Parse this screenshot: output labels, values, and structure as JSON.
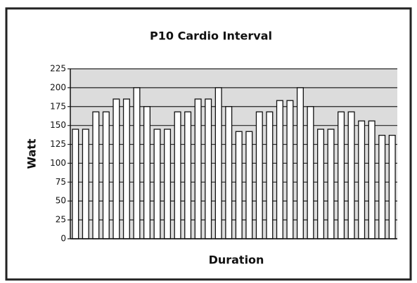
{
  "chart_data": {
    "type": "bar",
    "title": "P10 Cardio Interval",
    "x_label": "Duration",
    "y_label": "Watt",
    "categories": [
      null,
      null,
      null,
      null,
      null,
      null,
      null,
      null,
      null,
      null,
      null,
      null,
      null,
      null,
      null,
      null,
      null,
      null,
      null,
      null,
      null,
      null,
      null,
      null,
      null,
      null,
      null,
      null,
      null,
      null,
      null,
      null
    ],
    "values": [
      145,
      145,
      168,
      168,
      185,
      185,
      200,
      175,
      145,
      145,
      168,
      168,
      185,
      185,
      200,
      175,
      142,
      142,
      168,
      168,
      183,
      183,
      200,
      175,
      145,
      145,
      168,
      168,
      156,
      156,
      137,
      137
    ],
    "color": "#ffffff",
    "ylim": [
      0,
      225
    ],
    "yticks": [
      0,
      25,
      50,
      75,
      100,
      125,
      150,
      175,
      200,
      225
    ],
    "grid": true
  }
}
